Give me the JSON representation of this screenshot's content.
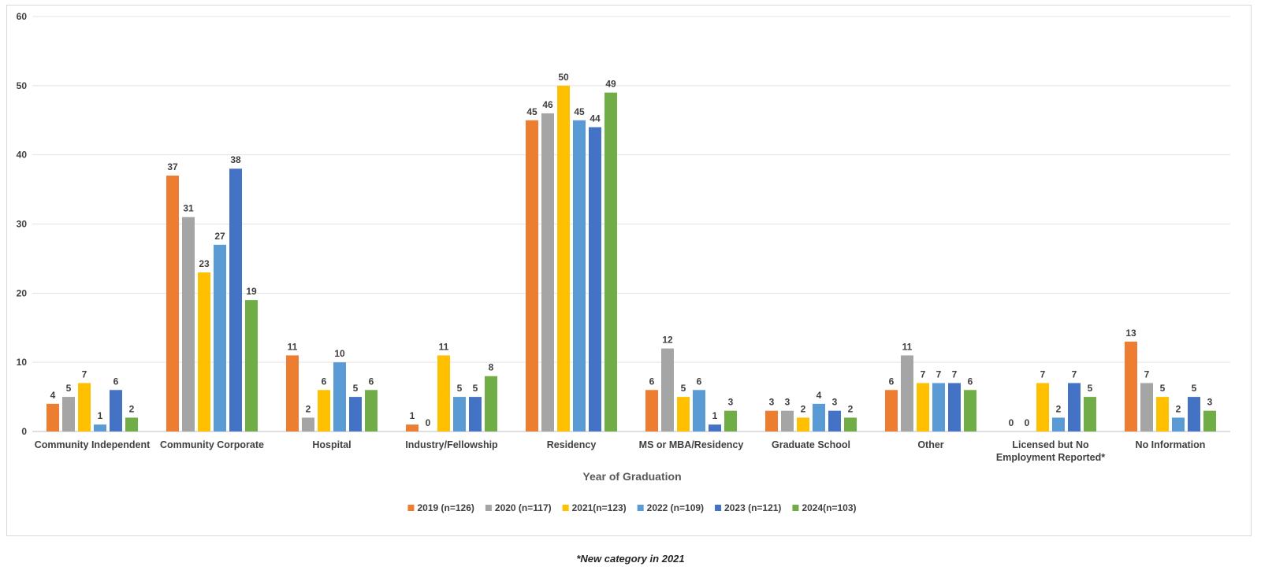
{
  "chart_data": {
    "type": "bar",
    "title": "",
    "xlabel": "Year of Graduation",
    "ylabel": "",
    "ylim": [
      0,
      60
    ],
    "yticks": [
      0,
      10,
      20,
      30,
      40,
      50,
      60
    ],
    "grid": true,
    "legend_position": "bottom",
    "categories": [
      [
        "Community Independent"
      ],
      [
        "Community Corporate"
      ],
      [
        "Hospital"
      ],
      [
        "Industry/Fellowship"
      ],
      [
        "Residency"
      ],
      [
        "MS or MBA/Residency"
      ],
      [
        "Graduate School"
      ],
      [
        "Other"
      ],
      [
        "Licensed but No",
        "Employment Reported*"
      ],
      [
        "No Information"
      ]
    ],
    "series": [
      {
        "name": "2019 (n=126)",
        "color": "#ED7D31",
        "values": [
          4,
          37,
          11,
          1,
          45,
          6,
          3,
          6,
          0,
          13
        ]
      },
      {
        "name": "2020 (n=117)",
        "color": "#A5A5A5",
        "values": [
          5,
          31,
          2,
          0,
          46,
          12,
          3,
          11,
          0,
          7
        ]
      },
      {
        "name": "2021(n=123)",
        "color": "#FFC000",
        "values": [
          7,
          23,
          6,
          11,
          50,
          5,
          2,
          7,
          7,
          5
        ]
      },
      {
        "name": "2022 (n=109)",
        "color": "#5B9BD5",
        "values": [
          1,
          27,
          10,
          5,
          45,
          6,
          4,
          7,
          2,
          2
        ]
      },
      {
        "name": "2023 (n=121)",
        "color": "#4472C4",
        "values": [
          6,
          38,
          5,
          5,
          44,
          1,
          3,
          7,
          7,
          5
        ]
      },
      {
        "name": "2024(n=103)",
        "color": "#70AD47",
        "values": [
          2,
          19,
          6,
          8,
          49,
          3,
          2,
          6,
          5,
          3
        ]
      }
    ]
  },
  "footnote": "*New category in 2021"
}
